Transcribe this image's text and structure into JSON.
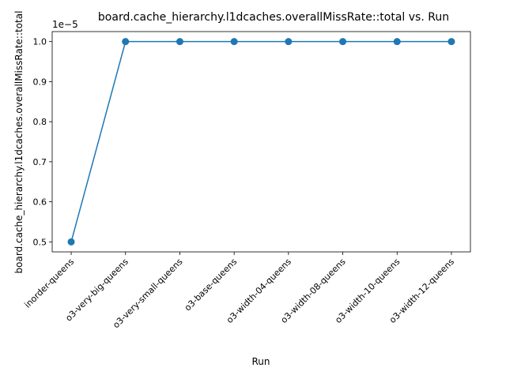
{
  "chart_data": {
    "type": "line",
    "title": "board.cache_hierarchy.l1dcaches.overallMissRate::total vs. Run",
    "xlabel": "Run",
    "ylabel": "board.cache_hierarchy.l1dcaches.overallMissRate::total",
    "offset_label": "1e−5",
    "categories": [
      "inorder-queens",
      "o3-very-big-queens",
      "o3-very-small-queens",
      "o3-base-queens",
      "o3-width-04-queens",
      "o3-width-08-queens",
      "o3-width-10-queens",
      "o3-width-12-queens"
    ],
    "values": [
      0.5,
      1.0,
      1.0,
      1.0,
      1.0,
      1.0,
      1.0,
      1.0
    ],
    "scale": 1e-05,
    "ylim": [
      0.475,
      1.025
    ],
    "yticks": [
      0.5,
      0.6,
      0.7,
      0.8,
      0.9,
      1.0
    ],
    "ytick_labels": [
      "0.5",
      "0.6",
      "0.7",
      "0.8",
      "0.9",
      "1.0"
    ],
    "grid": false,
    "legend": "none",
    "color": "#1f77b4"
  }
}
